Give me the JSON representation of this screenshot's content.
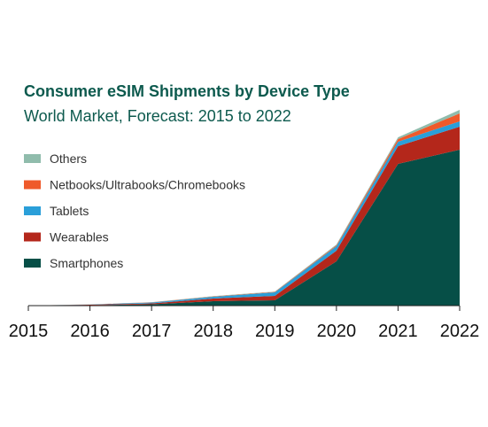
{
  "chart_data": {
    "type": "area",
    "stacked": true,
    "title": "Consumer eSIM Shipments by Device Type",
    "subtitle": "World Market, Forecast: 2015 to 2022",
    "x": [
      "2015",
      "2016",
      "2017",
      "2018",
      "2019",
      "2020",
      "2021",
      "2022"
    ],
    "ylim": [
      0,
      220
    ],
    "grid": false,
    "legend_position": "left",
    "series": [
      {
        "name": "Smartphones",
        "color": "#064f47",
        "values": [
          0,
          0.5,
          1.5,
          5,
          6,
          50,
          160,
          176
        ]
      },
      {
        "name": "Wearables",
        "color": "#b4271b",
        "values": [
          0,
          0.5,
          1,
          3,
          5,
          12,
          20,
          26
        ]
      },
      {
        "name": "Tablets",
        "color": "#2a9fd9",
        "values": [
          0,
          0.3,
          1,
          2,
          4,
          5,
          5,
          6
        ]
      },
      {
        "name": "Netbooks/Ultrabooks/Chromebooks",
        "color": "#ef5a2b",
        "values": [
          0,
          0.1,
          0.2,
          0.4,
          0.5,
          1,
          3,
          9
        ]
      },
      {
        "name": "Others",
        "color": "#90bcac",
        "values": [
          0,
          0.1,
          0.2,
          0.3,
          0.4,
          1,
          2,
          4
        ]
      }
    ],
    "legend_order": [
      "Others",
      "Netbooks/Ultrabooks/Chromebooks",
      "Tablets",
      "Wearables",
      "Smartphones"
    ]
  }
}
